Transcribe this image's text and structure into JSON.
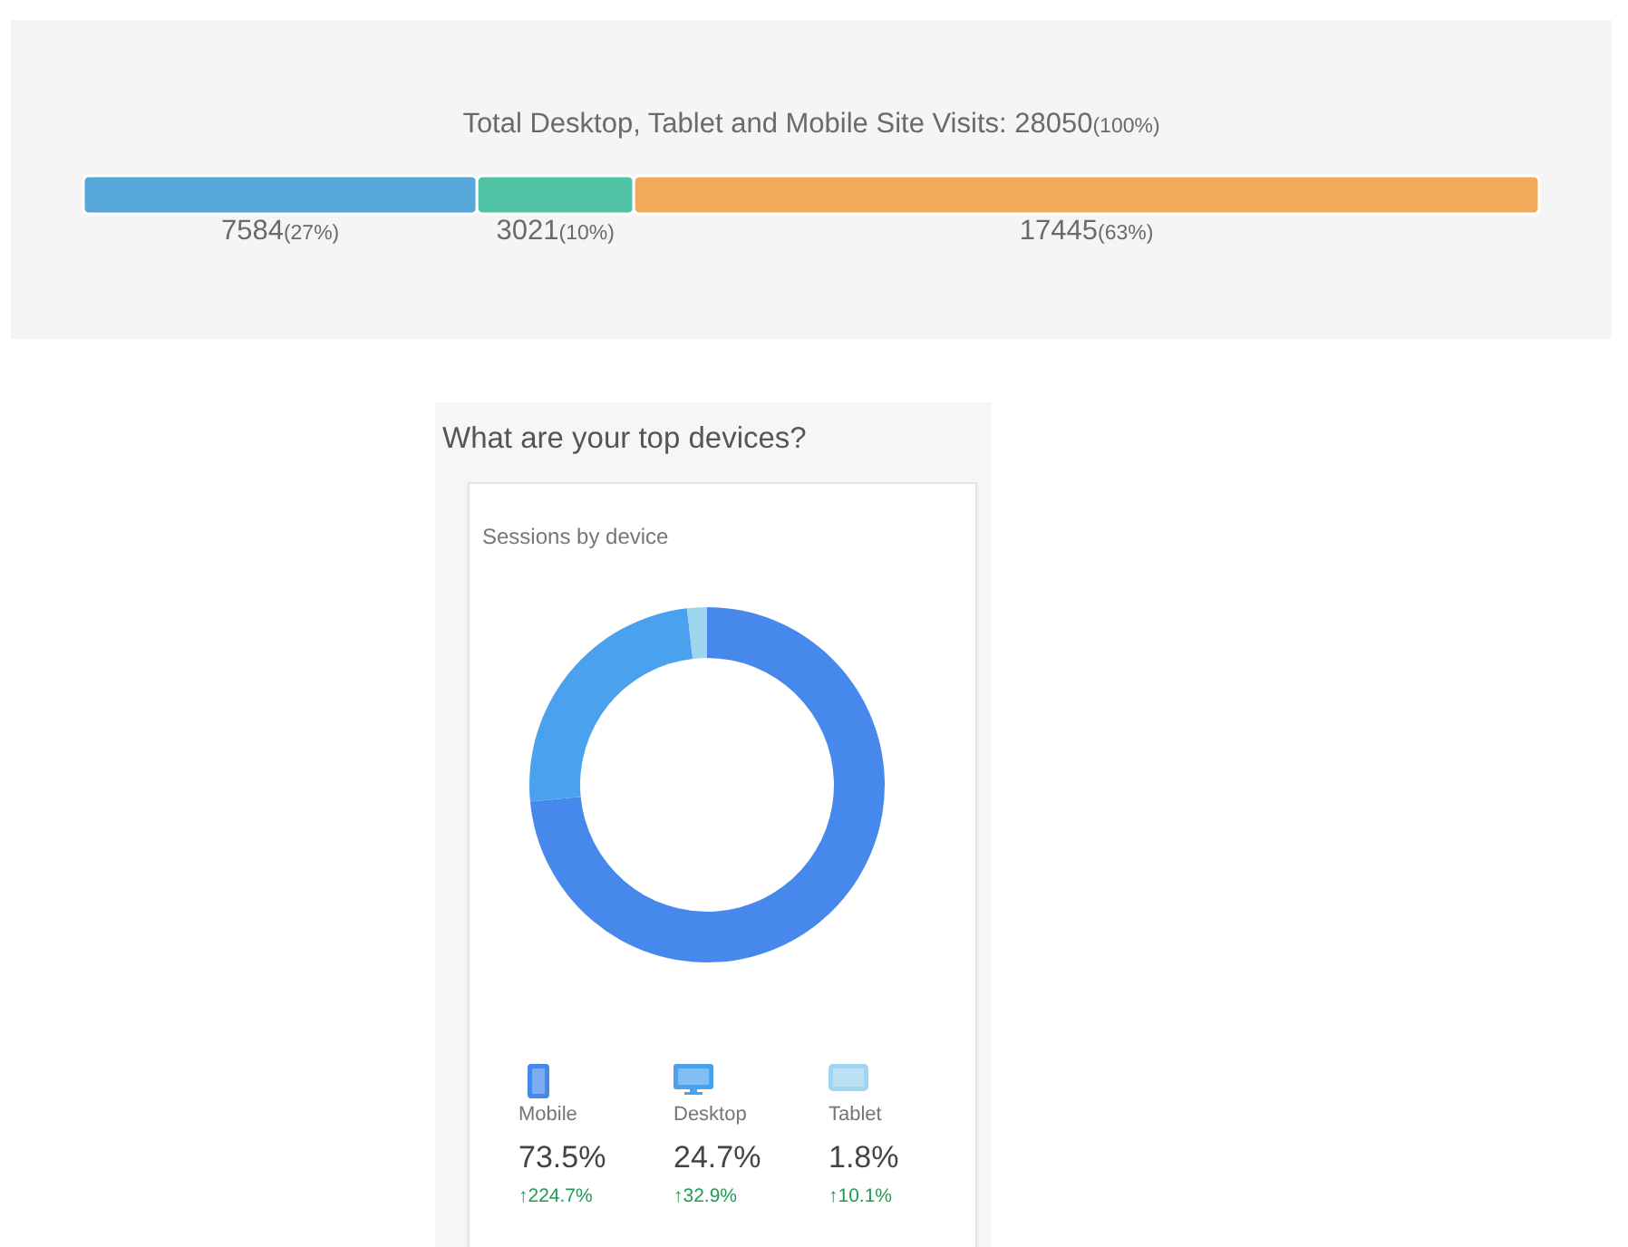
{
  "chart_data": [
    {
      "type": "bar",
      "orientation": "horizontal",
      "stacked": true,
      "title": "Total Desktop, Tablet and Mobile Site Visits: 28050(100%)",
      "categories": [
        null
      ],
      "tick_labels": false,
      "series": [
        {
          "color": "#57a7da",
          "values": [
            7584
          ],
          "value_labels": [
            "7584(27%)"
          ]
        },
        {
          "color": "#4fc3a3",
          "values": [
            3021
          ],
          "value_labels": [
            "3021(10%)"
          ]
        },
        {
          "color": "#f0aa5a",
          "values": [
            17445
          ],
          "value_labels": [
            "17445(63%)"
          ]
        }
      ]
    },
    {
      "type": "donut",
      "title": "What are your top devices?",
      "subtitle": "Sessions by device",
      "categories": [
        "Mobile",
        "Desktop",
        "Tablet"
      ],
      "values": [
        73.5,
        24.7,
        1.8
      ],
      "colors": [
        "#4788ec",
        "#4aa2ef",
        "#9fd5ef"
      ],
      "value_labels": [
        "73.5%",
        "24.7%",
        "1.8%"
      ],
      "annotations": [
        "↑224.7%",
        "↑32.9%",
        "↑10.1%"
      ],
      "legend": "bottom"
    }
  ]
}
